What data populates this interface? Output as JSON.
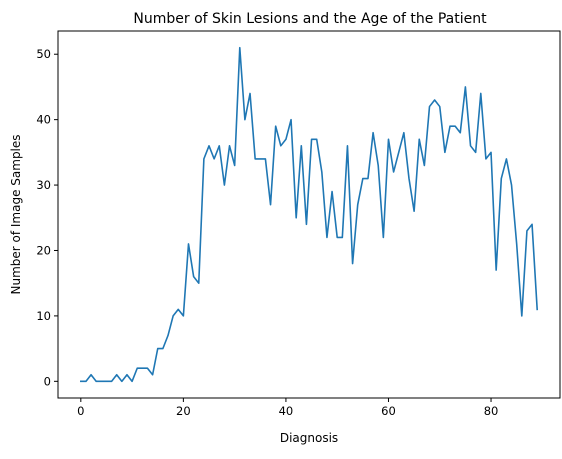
{
  "chart_data": {
    "type": "line",
    "title": "Number of Skin Lesions and the Age of the Patient",
    "xlabel": "Diagnosis",
    "ylabel": "Number of Image Samples",
    "xlim": [
      -4.45,
      93.45
    ],
    "ylim": [
      -2.55,
      53.55
    ],
    "x_ticks": [
      0,
      20,
      40,
      60,
      80
    ],
    "y_ticks": [
      0,
      10,
      20,
      30,
      40,
      50
    ],
    "grid": false,
    "legend": "none",
    "series": [
      {
        "color": "#1f77b4",
        "x": [
          0,
          1,
          2,
          3,
          4,
          5,
          6,
          7,
          8,
          9,
          10,
          11,
          12,
          13,
          14,
          15,
          16,
          17,
          18,
          19,
          20,
          21,
          22,
          23,
          24,
          25,
          26,
          27,
          28,
          29,
          30,
          31,
          32,
          33,
          34,
          35,
          36,
          37,
          38,
          39,
          40,
          41,
          42,
          43,
          44,
          45,
          46,
          47,
          48,
          49,
          50,
          51,
          52,
          53,
          54,
          55,
          56,
          57,
          58,
          59,
          60,
          61,
          62,
          63,
          64,
          65,
          66,
          67,
          68,
          69,
          70,
          71,
          72,
          73,
          74,
          75,
          76,
          77,
          78,
          79,
          80,
          81,
          82,
          83,
          84,
          85,
          86,
          87,
          88,
          89
        ],
        "values": [
          0,
          0,
          1,
          0,
          0,
          0,
          0,
          1,
          0,
          1,
          0,
          2,
          2,
          2,
          1,
          5,
          5,
          7,
          10,
          11,
          10,
          21,
          16,
          15,
          34,
          36,
          34,
          36,
          30,
          36,
          33,
          51,
          40,
          44,
          34,
          34,
          34,
          27,
          39,
          36,
          37,
          40,
          25,
          36,
          24,
          37,
          37,
          32,
          22,
          29,
          22,
          22,
          36,
          18,
          27,
          31,
          31,
          38,
          33,
          22,
          37,
          32,
          35,
          38,
          31,
          26,
          37,
          33,
          42,
          43,
          42,
          35,
          39,
          39,
          38,
          45,
          36,
          35,
          44,
          34,
          35,
          17,
          31,
          34,
          30,
          21,
          10,
          23,
          24,
          11
        ]
      }
    ]
  }
}
